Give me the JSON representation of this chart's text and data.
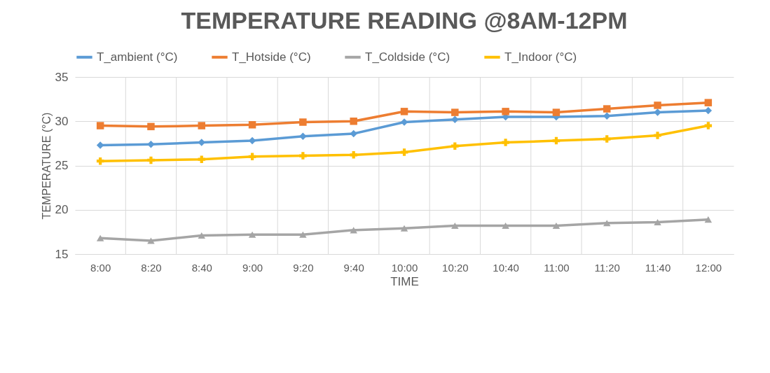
{
  "chart_data": {
    "type": "line",
    "title": "TEMPERATURE READING @8AM-12PM",
    "xlabel": "TIME",
    "ylabel": "TEMPERATURE (°C)",
    "categories": [
      "8:00",
      "8:20",
      "8:40",
      "9:00",
      "9:20",
      "9:40",
      "10:00",
      "10:20",
      "10:40",
      "11:00",
      "11:20",
      "11:40",
      "12:00"
    ],
    "series": [
      {
        "name": "T_ambient (°C)",
        "color": "#5b9bd5",
        "marker": "diamond",
        "values": [
          27.3,
          27.4,
          27.6,
          27.8,
          28.3,
          28.6,
          29.9,
          30.2,
          30.5,
          30.5,
          30.6,
          31.0,
          31.2
        ]
      },
      {
        "name": "T_Hotside (°C)",
        "color": "#ed7d31",
        "marker": "square",
        "values": [
          29.5,
          29.4,
          29.5,
          29.6,
          29.9,
          30.0,
          31.1,
          31.0,
          31.1,
          31.0,
          31.4,
          31.8,
          32.1
        ]
      },
      {
        "name": "T_Coldside (°C)",
        "color": "#a5a5a5",
        "marker": "triangle",
        "values": [
          16.8,
          16.5,
          17.1,
          17.2,
          17.2,
          17.7,
          17.9,
          18.2,
          18.2,
          18.2,
          18.5,
          18.6,
          18.9
        ]
      },
      {
        "name": "T_Indoor (°C)",
        "color": "#ffc000",
        "marker": "cross",
        "values": [
          25.5,
          25.6,
          25.7,
          26.0,
          26.1,
          26.2,
          26.5,
          27.2,
          27.6,
          27.8,
          28.0,
          28.4,
          29.5
        ]
      }
    ],
    "ylim": [
      15,
      35
    ],
    "yticks": [
      15,
      20,
      25,
      30,
      35
    ],
    "grid": true,
    "legend": "top",
    "line_style": "solid"
  }
}
